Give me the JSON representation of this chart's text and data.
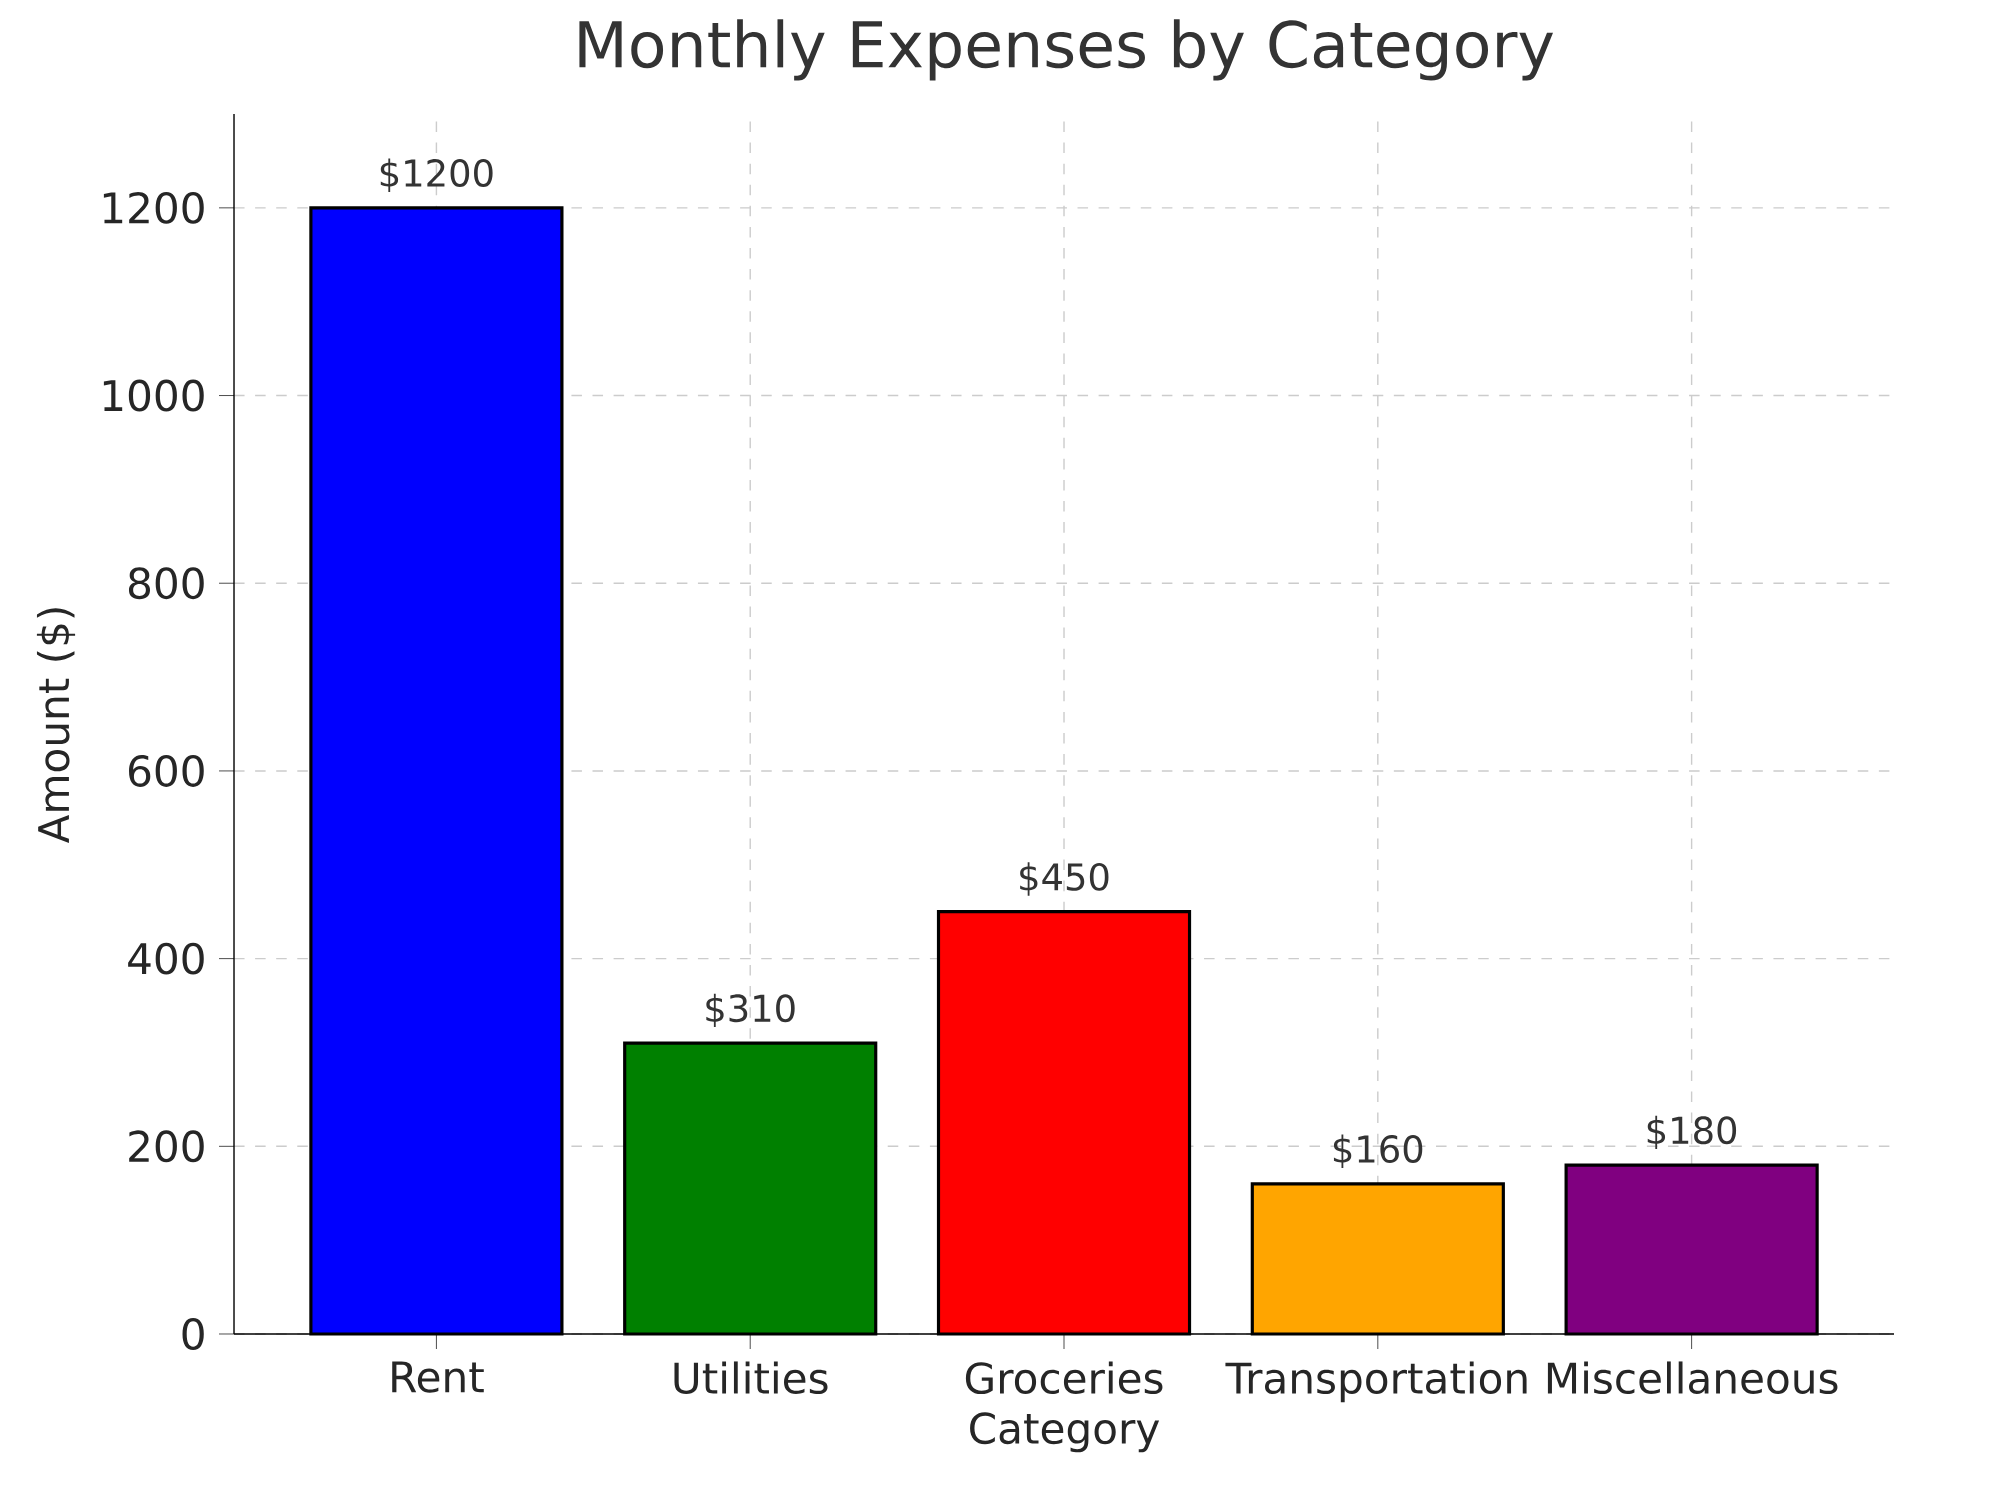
{
  "chart_data": {
    "type": "bar",
    "title": "Monthly Expenses by Category",
    "xlabel": "Category",
    "ylabel": "Amount ($)",
    "categories": [
      "Rent",
      "Utilities",
      "Groceries",
      "Transportation",
      "Miscellaneous"
    ],
    "values": [
      1200,
      310,
      450,
      160,
      180
    ],
    "colors": [
      "#0000ff",
      "#008000",
      "#ff0000",
      "#ffa500",
      "#800080"
    ],
    "value_labels": [
      "$1200",
      "$310",
      "$450",
      "$160",
      "$180"
    ],
    "ylim": [
      0,
      1300
    ],
    "yticks": [
      0,
      200,
      400,
      600,
      800,
      1000,
      1200
    ],
    "grid": true
  }
}
